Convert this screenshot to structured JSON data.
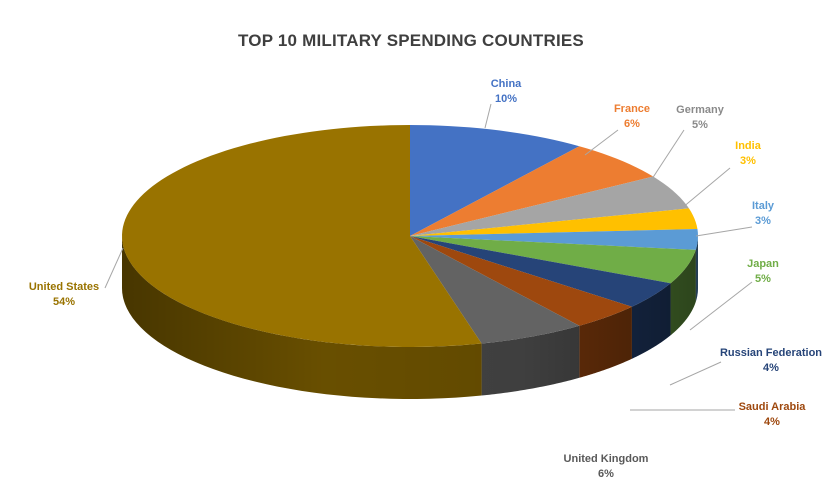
{
  "chart_data": {
    "type": "pie",
    "title": "TOP 10 MILITARY SPENDING COUNTRIES",
    "slices": [
      {
        "name": "China",
        "value": 10,
        "label": "10%",
        "color": "#4472c4"
      },
      {
        "name": "France",
        "value": 6,
        "label": "6%",
        "color": "#ed7d31"
      },
      {
        "name": "Germany",
        "value": 5,
        "label": "5%",
        "color": "#a5a5a5"
      },
      {
        "name": "India",
        "value": 3,
        "label": "3%",
        "color": "#ffc000"
      },
      {
        "name": "Italy",
        "value": 3,
        "label": "3%",
        "color": "#5b9bd5"
      },
      {
        "name": "Japan",
        "value": 5,
        "label": "5%",
        "color": "#70ad47"
      },
      {
        "name": "Russian Federation",
        "value": 4,
        "label": "4%",
        "color": "#264478"
      },
      {
        "name": "Saudi Arabia",
        "value": 4,
        "label": "4%",
        "color": "#9e480e"
      },
      {
        "name": "United Kingdom",
        "value": 6,
        "label": "6%",
        "color": "#636363"
      },
      {
        "name": "United States",
        "value": 54,
        "label": "54%",
        "color": "#997300"
      }
    ],
    "style": "3d-pie",
    "legend": "none"
  }
}
